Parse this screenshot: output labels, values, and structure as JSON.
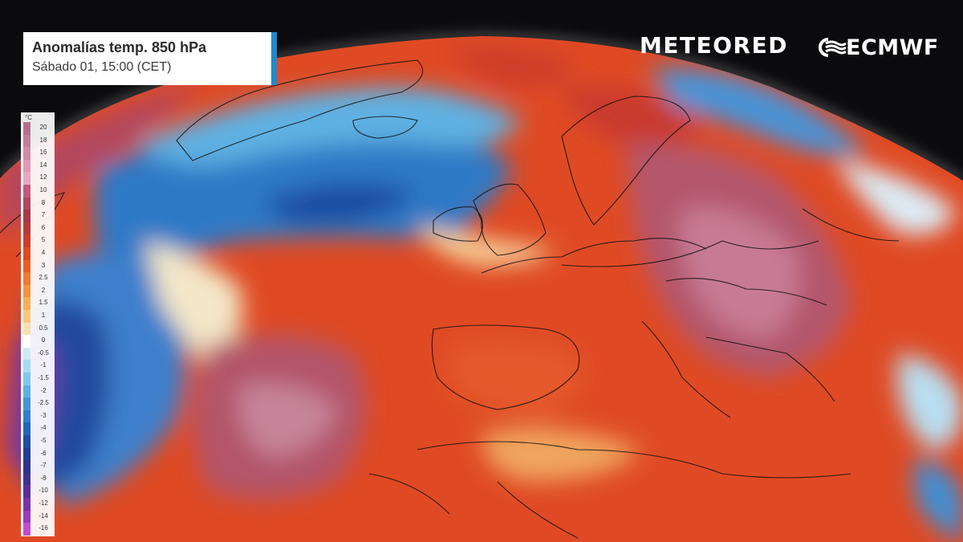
{
  "title": {
    "line1": "Anomalías temp. 850 hPa",
    "line2": "Sábado 01, 15:00 (CET)"
  },
  "brand": {
    "meteored": "METEORED",
    "ecmwf": "ECMWF",
    "ecmwf_icon": "ecmwf-logo-icon"
  },
  "legend": {
    "unit": "°C",
    "items": [
      {
        "label": "20",
        "color": "#b56f8e"
      },
      {
        "label": "18",
        "color": "#c47c99"
      },
      {
        "label": "16",
        "color": "#d18ba6"
      },
      {
        "label": "14",
        "color": "#de9bb8"
      },
      {
        "label": "12",
        "color": "#e6a8c3"
      },
      {
        "label": "10",
        "color": "#c25a7a"
      },
      {
        "label": "8",
        "color": "#b04860"
      },
      {
        "label": "7",
        "color": "#a63a4a"
      },
      {
        "label": "6",
        "color": "#b93a3a"
      },
      {
        "label": "5",
        "color": "#cc3d2c"
      },
      {
        "label": "4",
        "color": "#dc4b25"
      },
      {
        "label": "3",
        "color": "#e85f26"
      },
      {
        "label": "2.5",
        "color": "#ee7a33"
      },
      {
        "label": "2",
        "color": "#f4933f"
      },
      {
        "label": "1.5",
        "color": "#f6ae5a"
      },
      {
        "label": "1",
        "color": "#f7c77f"
      },
      {
        "label": "0.5",
        "color": "#f8e0b0"
      },
      {
        "label": "0",
        "color": "#ffffff"
      },
      {
        "label": "-0.5",
        "color": "#cbeaf6"
      },
      {
        "label": "-1",
        "color": "#a6dcf0"
      },
      {
        "label": "-1.5",
        "color": "#7ec8ea"
      },
      {
        "label": "-2",
        "color": "#5db2e2"
      },
      {
        "label": "-2.5",
        "color": "#4397d6"
      },
      {
        "label": "-3",
        "color": "#327fc9"
      },
      {
        "label": "-4",
        "color": "#2566b8"
      },
      {
        "label": "-5",
        "color": "#1d4fa3"
      },
      {
        "label": "-6",
        "color": "#223f92"
      },
      {
        "label": "-7",
        "color": "#2e348a"
      },
      {
        "label": "-8",
        "color": "#40308e"
      },
      {
        "label": "-10",
        "color": "#5a2f9a"
      },
      {
        "label": "-12",
        "color": "#7a33a8"
      },
      {
        "label": "-14",
        "color": "#9b3bbb"
      },
      {
        "label": "-16",
        "color": "#bf4fce"
      }
    ]
  },
  "colors": {
    "background": "#0b0b0d",
    "accent": "#1e8ad0",
    "warm_strong": "#d53a26",
    "warm_extreme": "#b5576f",
    "cold": "#2f7ecb",
    "cold_extreme": "#7a3aaa",
    "neutral": "#ffffff"
  }
}
